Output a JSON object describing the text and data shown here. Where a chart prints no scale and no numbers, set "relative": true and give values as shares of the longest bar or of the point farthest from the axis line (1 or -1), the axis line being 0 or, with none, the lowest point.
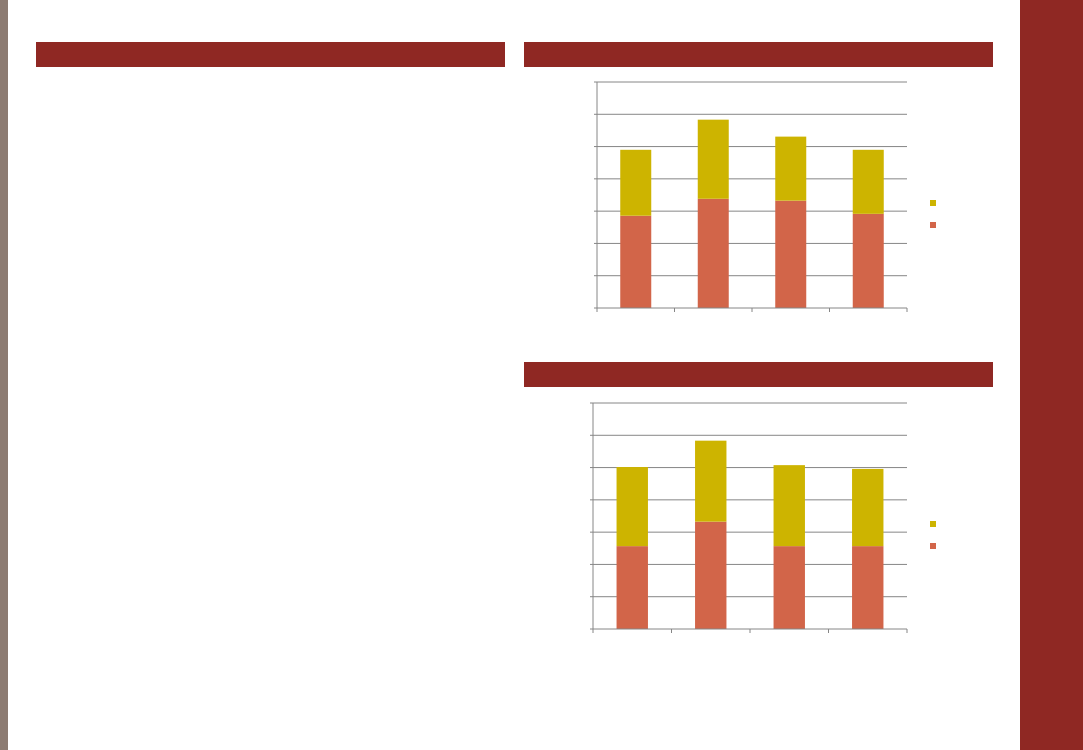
{
  "chart_data": [
    {
      "type": "bar",
      "stacked": true,
      "relative": true,
      "grid": "y",
      "categories": [
        null,
        null,
        null,
        null
      ],
      "series": [
        {
          "color": "#d26549",
          "values": [
            0.49,
            0.58,
            0.57,
            0.5
          ]
        },
        {
          "color": "#cdb400",
          "values": [
            0.35,
            0.42,
            0.34,
            0.34
          ]
        }
      ]
    },
    {
      "type": "bar",
      "stacked": true,
      "relative": true,
      "grid": "y",
      "categories": [
        null,
        null,
        null,
        null
      ],
      "series": [
        {
          "color": "#d26549",
          "values": [
            0.44,
            0.57,
            0.44,
            0.44
          ]
        },
        {
          "color": "#cdb400",
          "values": [
            0.42,
            0.43,
            0.43,
            0.41
          ]
        }
      ]
    }
  ]
}
